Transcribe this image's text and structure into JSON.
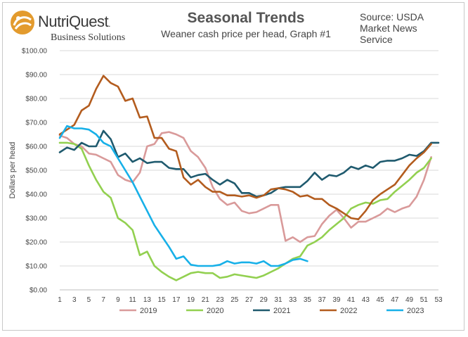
{
  "header": {
    "logo_name": "NutriQuest",
    "logo_trademark": ".",
    "logo_sub": "Business Solutions",
    "source_line1": "Source: USDA",
    "source_line2": "Market News",
    "source_line3": "Service"
  },
  "colors": {
    "logo_orange": "#e39b2e",
    "gridline": "#d9d9d9",
    "axis": "#bfbfbf"
  },
  "chart_data": {
    "type": "line",
    "title": "Seasonal Trends",
    "subtitle": "Weaner cash price per head, Graph #1",
    "xlabel": "",
    "ylabel": "Dollars per head",
    "xlim": [
      1,
      53
    ],
    "ylim": [
      0,
      100
    ],
    "x_ticks": [
      1,
      3,
      5,
      7,
      9,
      11,
      13,
      15,
      17,
      19,
      21,
      23,
      25,
      27,
      29,
      31,
      33,
      35,
      37,
      39,
      41,
      43,
      45,
      47,
      49,
      51,
      53
    ],
    "y_ticks": [
      "$0.00",
      "$10.00",
      "$20.00",
      "$30.00",
      "$40.00",
      "$50.00",
      "$60.00",
      "$70.00",
      "$80.00",
      "$90.00",
      "$100.00"
    ],
    "grid": "horizontal",
    "legend_position": "bottom",
    "series": [
      {
        "name": "2019",
        "color": "#d99a9a",
        "x_start": 1,
        "values": [
          64.5,
          63.5,
          61,
          60,
          57,
          56.5,
          55,
          53.5,
          48,
          46,
          45,
          49,
          60,
          61,
          65.5,
          66,
          65,
          63.5,
          58,
          55.5,
          51,
          43,
          38,
          35.5,
          36.5,
          33,
          32,
          32.5,
          34,
          35.5,
          35.5,
          20.5,
          22,
          20,
          22,
          22.5,
          27.5,
          31,
          33.5,
          30,
          26,
          28.5,
          28.5,
          30,
          31.5,
          34,
          32.5,
          34,
          35,
          39,
          46,
          55.5
        ]
      },
      {
        "name": "2020",
        "color": "#92d050",
        "x_start": 1,
        "values": [
          61.5,
          61.5,
          61,
          59,
          52,
          46,
          41,
          38.5,
          30,
          28,
          25,
          14.5,
          16,
          10,
          7.5,
          5.5,
          4,
          5.5,
          7,
          7.5,
          7,
          7,
          5,
          5.5,
          6.5,
          6,
          5.5,
          5,
          6,
          7.5,
          9,
          11,
          13,
          14,
          18.5,
          20,
          22,
          25,
          27.5,
          30,
          34,
          35.5,
          36.5,
          36,
          37.5,
          38,
          41,
          43.5,
          46,
          49,
          51,
          55
        ]
      },
      {
        "name": "2021",
        "color": "#1f5a6e",
        "x_start": 1,
        "values": [
          57.5,
          59.5,
          58.5,
          61.5,
          60,
          60,
          66.5,
          63,
          55.5,
          57,
          53.5,
          55,
          53,
          53.5,
          53.5,
          51,
          50.5,
          50.5,
          47,
          48,
          48.5,
          46,
          44,
          46,
          44.5,
          40.5,
          40.5,
          39,
          39.5,
          40.5,
          42.5,
          43,
          43,
          43,
          45.5,
          49,
          46,
          48,
          47.5,
          49,
          51.5,
          50.5,
          52,
          51,
          53.5,
          54,
          54,
          55,
          56.5,
          56,
          58,
          61.5,
          61.5
        ]
      },
      {
        "name": "2022",
        "color": "#b35c1e",
        "x_start": 1,
        "values": [
          65,
          67,
          69,
          75,
          77,
          84,
          89.5,
          86.5,
          85,
          79,
          80,
          72,
          72.5,
          63.5,
          63.5,
          59,
          58,
          47,
          44,
          46,
          43,
          41,
          41,
          39.5,
          39.5,
          39,
          39.5,
          38.5,
          39.5,
          42,
          42.5,
          42,
          41,
          39,
          39.5,
          38,
          38,
          35.5,
          34,
          32,
          30,
          29.5,
          33,
          37.5,
          40,
          42,
          44,
          48,
          52,
          55,
          57.5,
          61
        ]
      },
      {
        "name": "2023",
        "color": "#17b0e8",
        "x_start": 1,
        "values": [
          63.5,
          68.5,
          67.5,
          67.5,
          67,
          65,
          61.5,
          60,
          55,
          50,
          45,
          39,
          33,
          27,
          22.5,
          18,
          13,
          14,
          10.5,
          10,
          10,
          10,
          10.5,
          12,
          11,
          11.5,
          11.5,
          11,
          12,
          10,
          10,
          11,
          12.5,
          13,
          12
        ]
      }
    ]
  }
}
